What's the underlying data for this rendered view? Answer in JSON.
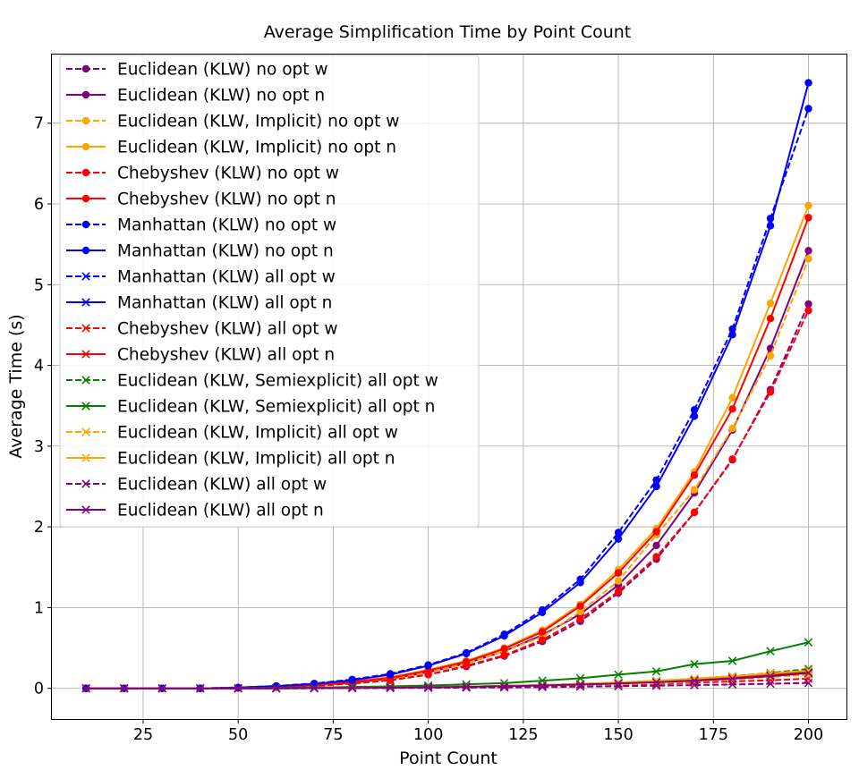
{
  "chart_data": {
    "type": "line",
    "title": "Average Simplification Time by Point Count",
    "xlabel": "Point Count",
    "ylabel": "Average Time (s)",
    "xlim": [
      1,
      210
    ],
    "ylim": [
      -0.38,
      7.85
    ],
    "xticks": [
      25,
      50,
      75,
      100,
      125,
      150,
      175,
      200
    ],
    "yticks": [
      0,
      1,
      2,
      3,
      4,
      5,
      6,
      7
    ],
    "grid": true,
    "legend_position": "upper-left",
    "x": [
      10,
      20,
      30,
      40,
      50,
      60,
      70,
      80,
      90,
      100,
      110,
      120,
      130,
      140,
      150,
      160,
      170,
      180,
      190,
      200
    ],
    "series": [
      {
        "name": "Euclidean  (KLW) no opt w",
        "color": "#800080",
        "linestyle": "dashed",
        "marker": "circle",
        "values": [
          0,
          0,
          0,
          0,
          0.005,
          0.015,
          0.03,
          0.06,
          0.1,
          0.17,
          0.27,
          0.4,
          0.58,
          0.83,
          1.18,
          1.6,
          2.18,
          2.83,
          3.7,
          4.76
        ]
      },
      {
        "name": "Euclidean  (KLW) no opt n",
        "color": "#800080",
        "linestyle": "solid",
        "marker": "circle",
        "values": [
          0,
          0,
          0,
          0,
          0.007,
          0.018,
          0.038,
          0.07,
          0.12,
          0.2,
          0.31,
          0.46,
          0.66,
          0.92,
          1.28,
          1.77,
          2.42,
          3.2,
          4.21,
          5.42
        ]
      },
      {
        "name": "Euclidean  (KLW, Implicit) no opt w",
        "color": "#ffa500",
        "linestyle": "dashed",
        "marker": "circle",
        "values": [
          0,
          0,
          0,
          0,
          0.007,
          0.018,
          0.04,
          0.07,
          0.12,
          0.2,
          0.31,
          0.46,
          0.64,
          0.95,
          1.33,
          1.9,
          2.46,
          3.22,
          4.12,
          5.32
        ]
      },
      {
        "name": "Euclidean  (KLW, Implicit) no opt n",
        "color": "#ffa500",
        "linestyle": "solid",
        "marker": "circle",
        "values": [
          0,
          0,
          0,
          0,
          0.008,
          0.02,
          0.045,
          0.08,
          0.14,
          0.23,
          0.34,
          0.5,
          0.72,
          1.04,
          1.47,
          1.98,
          2.68,
          3.6,
          4.77,
          5.98
        ]
      },
      {
        "name": "Chebyshev  (KLW) no opt w",
        "color": "#ff0000",
        "linestyle": "dashed",
        "marker": "circle",
        "values": [
          0,
          0,
          0,
          0,
          0.005,
          0.015,
          0.03,
          0.06,
          0.1,
          0.17,
          0.28,
          0.41,
          0.6,
          0.86,
          1.2,
          1.63,
          2.18,
          2.84,
          3.67,
          4.68
        ]
      },
      {
        "name": "Chebyshev  (KLW) no opt n",
        "color": "#ff0000",
        "linestyle": "solid",
        "marker": "circle",
        "values": [
          0,
          0,
          0,
          0,
          0.008,
          0.02,
          0.043,
          0.08,
          0.13,
          0.22,
          0.33,
          0.49,
          0.7,
          1.02,
          1.43,
          1.94,
          2.64,
          3.46,
          4.58,
          5.83
        ]
      },
      {
        "name": "Manhattan  (KLW) no opt w",
        "color": "#0000ff",
        "linestyle": "dashed",
        "marker": "circle",
        "values": [
          0,
          0,
          0,
          0,
          0.01,
          0.03,
          0.06,
          0.11,
          0.18,
          0.29,
          0.44,
          0.67,
          0.97,
          1.35,
          1.93,
          2.58,
          3.45,
          4.45,
          5.82,
          7.18
        ]
      },
      {
        "name": "Manhattan  (KLW) no opt n",
        "color": "#0000ff",
        "linestyle": "solid",
        "marker": "circle",
        "values": [
          0,
          0,
          0,
          0,
          0.01,
          0.028,
          0.055,
          0.1,
          0.17,
          0.28,
          0.43,
          0.65,
          0.94,
          1.31,
          1.85,
          2.5,
          3.37,
          4.38,
          5.73,
          7.5
        ]
      },
      {
        "name": "Manhattan  (KLW) all opt w",
        "color": "#0000ff",
        "linestyle": "dashed",
        "marker": "x",
        "values": [
          0,
          0,
          0,
          0,
          0,
          0,
          0.002,
          0.005,
          0.008,
          0.012,
          0.018,
          0.025,
          0.033,
          0.045,
          0.06,
          0.075,
          0.095,
          0.12,
          0.15,
          0.18
        ]
      },
      {
        "name": "Manhattan  (KLW) all opt n",
        "color": "#0000ff",
        "linestyle": "solid",
        "marker": "x",
        "values": [
          0,
          0,
          0,
          0,
          0,
          0.001,
          0.003,
          0.006,
          0.01,
          0.015,
          0.022,
          0.03,
          0.04,
          0.055,
          0.07,
          0.09,
          0.11,
          0.14,
          0.17,
          0.2
        ]
      },
      {
        "name": "Chebyshev  (KLW) all opt w",
        "color": "#ff0000",
        "linestyle": "dashed",
        "marker": "x",
        "values": [
          0,
          0,
          0,
          0,
          0,
          0,
          0.002,
          0.004,
          0.006,
          0.009,
          0.013,
          0.018,
          0.025,
          0.033,
          0.042,
          0.055,
          0.07,
          0.085,
          0.1,
          0.12
        ]
      },
      {
        "name": "Chebyshev  (KLW) all opt n",
        "color": "#ff0000",
        "linestyle": "solid",
        "marker": "x",
        "values": [
          0,
          0,
          0,
          0,
          0,
          0.001,
          0.003,
          0.006,
          0.01,
          0.015,
          0.022,
          0.03,
          0.04,
          0.055,
          0.07,
          0.09,
          0.11,
          0.135,
          0.165,
          0.2
        ]
      },
      {
        "name": "Euclidean  (KLW, Semiexplicit) all opt w",
        "color": "#008000",
        "linestyle": "dashed",
        "marker": "x",
        "values": [
          0,
          0,
          0,
          0,
          0,
          0.001,
          0.003,
          0.006,
          0.01,
          0.015,
          0.022,
          0.03,
          0.04,
          0.055,
          0.07,
          0.09,
          0.12,
          0.15,
          0.19,
          0.24
        ]
      },
      {
        "name": "Euclidean  (KLW, Semiexplicit) all opt n",
        "color": "#008000",
        "linestyle": "solid",
        "marker": "x",
        "values": [
          0,
          0,
          0,
          0,
          0.002,
          0.005,
          0.01,
          0.017,
          0.025,
          0.035,
          0.05,
          0.065,
          0.095,
          0.125,
          0.17,
          0.21,
          0.3,
          0.34,
          0.46,
          0.57
        ]
      },
      {
        "name": "Euclidean  (KLW, Implicit) all opt w",
        "color": "#ffa500",
        "linestyle": "dashed",
        "marker": "x",
        "values": [
          0,
          0,
          0,
          0,
          0,
          0,
          0.002,
          0.004,
          0.007,
          0.01,
          0.015,
          0.02,
          0.028,
          0.038,
          0.05,
          0.065,
          0.085,
          0.11,
          0.14,
          0.17
        ]
      },
      {
        "name": "Euclidean  (KLW, Implicit) all opt n",
        "color": "#ffa500",
        "linestyle": "solid",
        "marker": "x",
        "values": [
          0,
          0,
          0,
          0,
          0,
          0.001,
          0.003,
          0.006,
          0.01,
          0.015,
          0.022,
          0.03,
          0.042,
          0.055,
          0.072,
          0.095,
          0.12,
          0.15,
          0.185,
          0.22
        ]
      },
      {
        "name": "Euclidean  (KLW) all opt w",
        "color": "#800080",
        "linestyle": "dashed",
        "marker": "x",
        "values": [
          0,
          0,
          0,
          0,
          0,
          0,
          0.001,
          0.002,
          0.004,
          0.006,
          0.009,
          0.012,
          0.016,
          0.021,
          0.026,
          0.033,
          0.04,
          0.048,
          0.057,
          0.067
        ]
      },
      {
        "name": "Euclidean  (KLW) all opt n",
        "color": "#800080",
        "linestyle": "solid",
        "marker": "x",
        "values": [
          0,
          0,
          0,
          0,
          0,
          0.001,
          0.003,
          0.005,
          0.009,
          0.013,
          0.019,
          0.026,
          0.035,
          0.047,
          0.06,
          0.075,
          0.095,
          0.12,
          0.15,
          0.19
        ]
      }
    ]
  }
}
